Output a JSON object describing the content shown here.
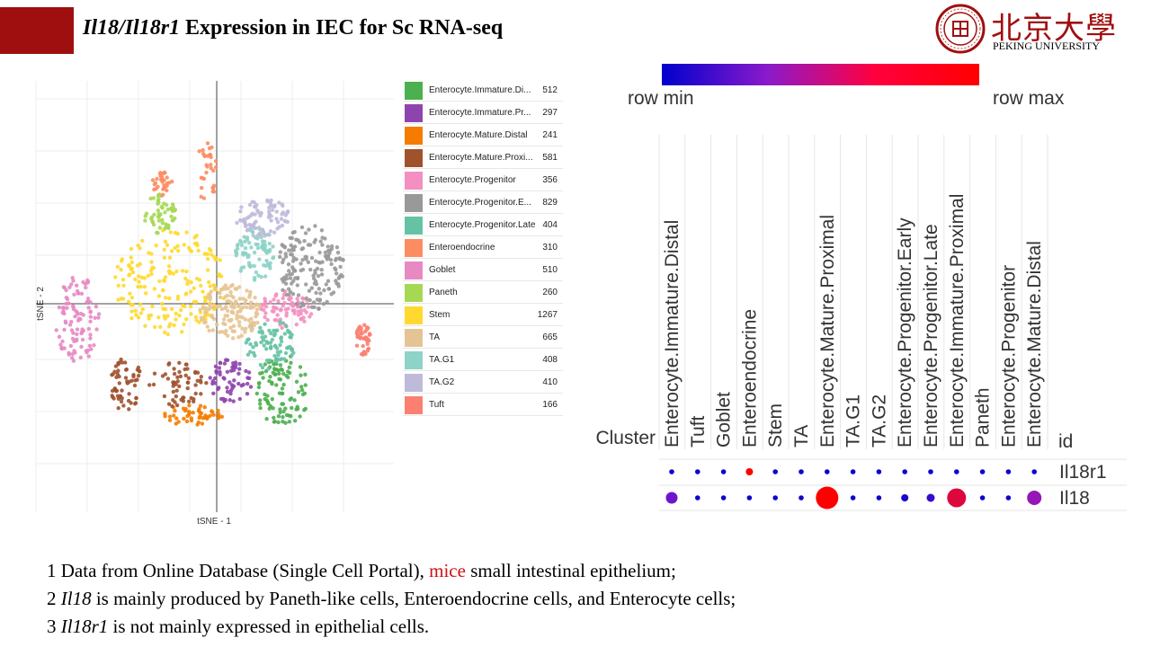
{
  "slide": {
    "title_gene1": "Il18",
    "title_sep": "/",
    "title_gene2": "Il18r1",
    "title_rest": " Expression in IEC for Sc RNA-seq",
    "accent_color": "#a00f0f"
  },
  "logo": {
    "chinese": "北京大學",
    "english": "PEKING UNIVERSITY"
  },
  "notes": {
    "line1_a": "1 Data from Online Database (Single Cell Portal), ",
    "line1_b": "mice",
    "line1_c": " small intestinal epithelium;",
    "line2_num": "2 ",
    "line2_gene": "Il18",
    "line2_rest": " is mainly produced by Paneth-like cells, Enteroendocrine cells, and Enterocyte cells;",
    "line3_num": "3 ",
    "line3_gene": "Il18r1",
    "line3_rest": " is not mainly expressed in epithelial cells."
  },
  "chart_data": [
    {
      "type": "scatter",
      "xlabel": "tSNE - 1",
      "ylabel": "tSNE - 2",
      "legend_position": "right",
      "grid": true,
      "series": [
        {
          "name": "Enterocyte.Immature.Di...",
          "count": "512",
          "color": "#4caf50"
        },
        {
          "name": "Enterocyte.Immature.Pr...",
          "count": "297",
          "color": "#8e44ad"
        },
        {
          "name": "Enterocyte.Mature.Distal",
          "count": "241",
          "color": "#f57c00"
        },
        {
          "name": "Enterocyte.Mature.Proxi...",
          "count": "581",
          "color": "#a0522d"
        },
        {
          "name": "Enterocyte.Progenitor",
          "count": "356",
          "color": "#f48fc1"
        },
        {
          "name": "Enterocyte.Progenitor.E...",
          "count": "829",
          "color": "#999999"
        },
        {
          "name": "Enterocyte.Progenitor.Late",
          "count": "404",
          "color": "#66c2a5"
        },
        {
          "name": "Enteroendocrine",
          "count": "310",
          "color": "#fc8d62"
        },
        {
          "name": "Goblet",
          "count": "510",
          "color": "#e78ac3"
        },
        {
          "name": "Paneth",
          "count": "260",
          "color": "#a6d854"
        },
        {
          "name": "Stem",
          "count": "1267",
          "color": "#ffd92f"
        },
        {
          "name": "TA",
          "count": "665",
          "color": "#e5c494"
        },
        {
          "name": "TA.G1",
          "count": "408",
          "color": "#8dd3c7"
        },
        {
          "name": "TA.G2",
          "count": "410",
          "color": "#bebada"
        },
        {
          "name": "Tuft",
          "count": "166",
          "color": "#fb8072"
        }
      ]
    },
    {
      "type": "heatmap",
      "subtype": "dot",
      "scale_min_label": "row min",
      "scale_max_label": "row max",
      "scale_colors": [
        "#0000cc",
        "#ff0000"
      ],
      "row_header": "Cluster",
      "id_header": "id",
      "columns": [
        "Enterocyte.Immature.Distal",
        "Tuft",
        "Goblet",
        "Enteroendocrine",
        "Stem",
        "TA",
        "Enterocyte.Mature.Proximal",
        "TA.G1",
        "TA.G2",
        "Enterocyte.Progenitor.Early",
        "Enterocyte.Progenitor.Late",
        "Enterocyte.Immature.Proximal",
        "Paneth",
        "Enterocyte.Progenitor",
        "Enterocyte.Mature.Distal"
      ],
      "rows": [
        {
          "id": "Il18r1",
          "color_level": [
            0.05,
            0.05,
            0.05,
            1.0,
            0.05,
            0.05,
            0.05,
            0.05,
            0.05,
            0.05,
            0.05,
            0.05,
            0.05,
            0.05,
            0.05
          ],
          "size_level": [
            0.1,
            0.1,
            0.1,
            0.15,
            0.1,
            0.1,
            0.1,
            0.1,
            0.1,
            0.1,
            0.1,
            0.1,
            0.1,
            0.1,
            0.1
          ]
        },
        {
          "id": "Il18",
          "color_level": [
            0.4,
            0.05,
            0.05,
            0.05,
            0.05,
            0.05,
            1.0,
            0.05,
            0.05,
            0.1,
            0.2,
            0.85,
            0.05,
            0.05,
            0.55
          ],
          "size_level": [
            0.4,
            0.12,
            0.12,
            0.12,
            0.12,
            0.12,
            1.0,
            0.12,
            0.12,
            0.15,
            0.2,
            0.8,
            0.12,
            0.12,
            0.55
          ]
        }
      ]
    }
  ]
}
